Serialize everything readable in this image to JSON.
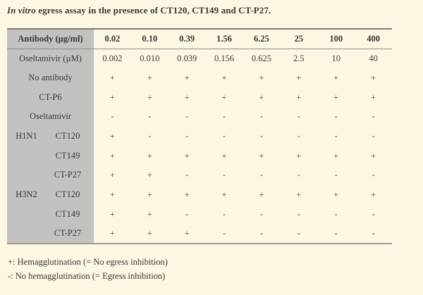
{
  "title": {
    "italic_part": "In vitro",
    "rest_part": " egress assay in the presence of CT120, CT149 and CT-P27."
  },
  "table": {
    "header": {
      "label": "Antibody (µg/ml)",
      "values": [
        "0.02",
        "0.10",
        "0.39",
        "1.56",
        "6.25",
        "25",
        "100",
        "400"
      ]
    },
    "rows": [
      {
        "split": false,
        "group": "",
        "label": "Oseltamivir (µM)",
        "values": [
          "0.002",
          "0.010",
          "0.039",
          "0.156",
          "0.625",
          "2.5",
          "10",
          "40"
        ]
      },
      {
        "split": false,
        "group": "",
        "label": "No antibody",
        "values": [
          "+",
          "+",
          "+",
          "+",
          "+",
          "+",
          "+",
          "+"
        ]
      },
      {
        "split": false,
        "group": "",
        "label": "CT-P6",
        "values": [
          "+",
          "+",
          "+",
          "+",
          "+",
          "+",
          "+",
          "+"
        ]
      },
      {
        "split": false,
        "group": "",
        "label": "Oseltamivir",
        "values": [
          "-",
          "-",
          "-",
          "-",
          "-",
          "-",
          "-",
          "-"
        ]
      },
      {
        "split": true,
        "group": "H1N1",
        "label": "CT120",
        "values": [
          "+",
          "-",
          "-",
          "-",
          "-",
          "-",
          "-",
          "-"
        ]
      },
      {
        "split": true,
        "group": "",
        "label": "CT149",
        "values": [
          "+",
          "+",
          "+",
          "+",
          "+",
          "+",
          "+",
          "+"
        ]
      },
      {
        "split": true,
        "group": "",
        "label": "CT-P27",
        "values": [
          "+",
          "+",
          "-",
          "-",
          "-",
          "-",
          "-",
          "-"
        ]
      },
      {
        "split": true,
        "group": "H3N2",
        "label": "CT120",
        "values": [
          "+",
          "+",
          "+",
          "+",
          "+",
          "+",
          "+",
          "+"
        ]
      },
      {
        "split": true,
        "group": "",
        "label": "CT149",
        "values": [
          "+",
          "+",
          "-",
          "-",
          "-",
          "-",
          "-",
          "-"
        ]
      },
      {
        "split": true,
        "group": "",
        "label": "CT-P27",
        "values": [
          "+",
          "+",
          "+",
          "-",
          "-",
          "-",
          "-",
          "-"
        ]
      }
    ]
  },
  "legend": {
    "line1": "+: Hemagglutination (= No egress inhibition)",
    "line2": "-: No hemagglutination (= Egress inhibition)"
  },
  "colors": {
    "background": "#fbf7e3",
    "label_column": "#c3c2c1",
    "border": "#8b8b8b",
    "text": "#3b3733",
    "symbol": "#53394d"
  }
}
